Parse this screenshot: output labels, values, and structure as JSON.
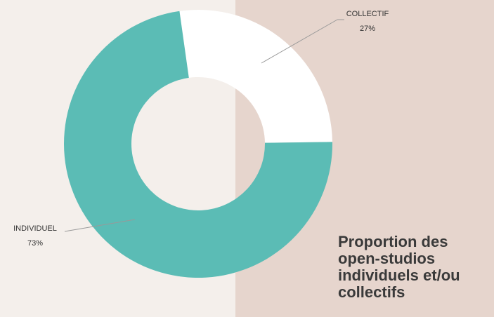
{
  "chart_data": {
    "type": "pie",
    "donut": true,
    "title": "Proportion des open-studios individuels et/ou collectifs",
    "slices": [
      {
        "label": "COLLECTIF",
        "value": 27,
        "value_label": "27%",
        "color": "#ffffff"
      },
      {
        "label": "INDIVIDUEL",
        "value": 73,
        "value_label": "73%",
        "color": "#5bbcb5"
      }
    ]
  },
  "colors": {
    "background_left": "#f4efeb",
    "background_right": "#e6d5cd",
    "leader_line": "#999999"
  }
}
